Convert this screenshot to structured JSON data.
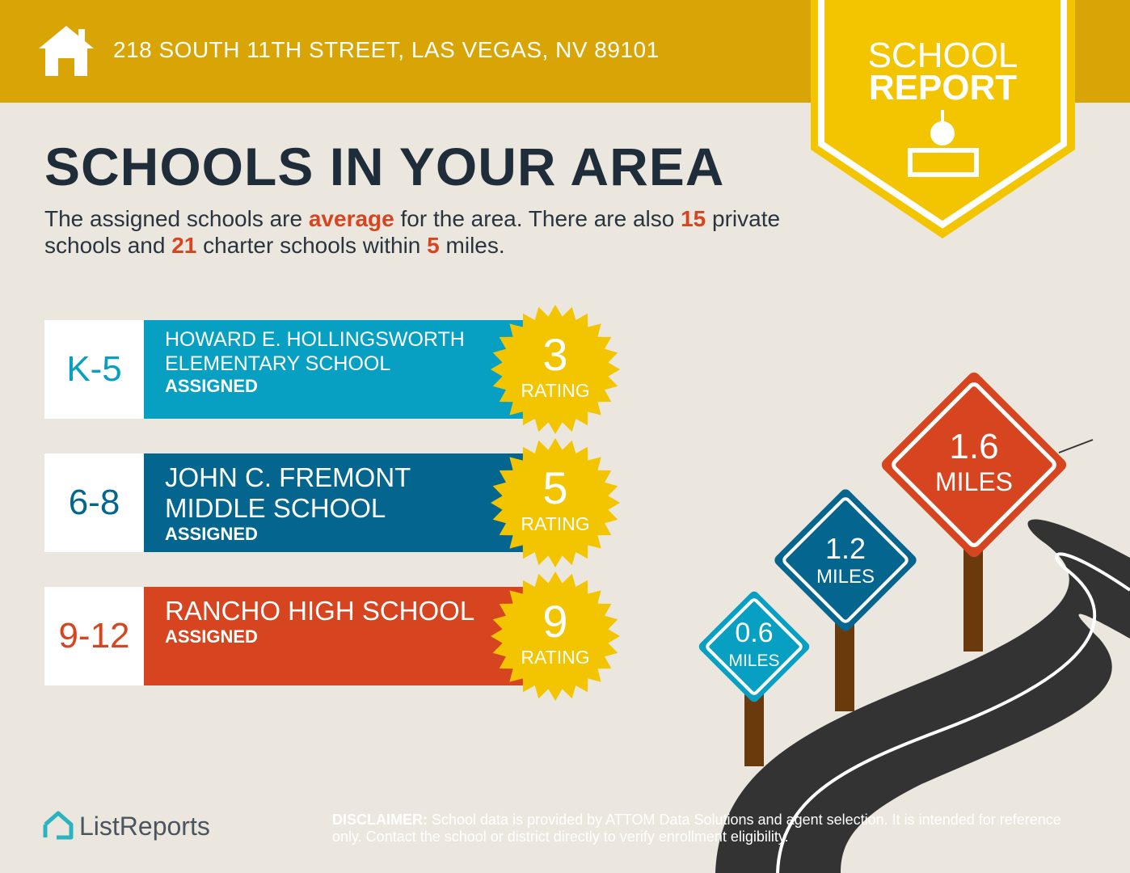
{
  "header": {
    "address": "218 SOUTH 11TH STREET, LAS VEGAS, NV 89101",
    "badge": [
      "SCHOOL",
      "REPORT"
    ]
  },
  "title": "SCHOOLS IN YOUR AREA",
  "summary": [
    "The assigned schools are ",
    "average",
    " for the area. There are also ",
    "15",
    " private schools and ",
    "21",
    " charter schools within ",
    "5",
    " miles."
  ],
  "schools": [
    {
      "grades": "K-5",
      "name_lines": [
        "HOWARD E. HOLLINGSWORTH",
        "ELEMENTARY SCHOOL"
      ],
      "status": "ASSIGNED",
      "rating": 3,
      "rating_label": "RATING"
    },
    {
      "grades": "6-8",
      "name_lines": [
        "JOHN C. FREMONT",
        "MIDDLE SCHOOL"
      ],
      "status": "ASSIGNED",
      "rating": 5,
      "rating_label": "RATING"
    },
    {
      "grades": "9-12",
      "name_lines": [
        "RANCHO HIGH SCHOOL"
      ],
      "status": "ASSIGNED",
      "rating": 9,
      "rating_label": "RATING"
    }
  ],
  "distances": [
    {
      "value": "0.6",
      "unit": "MILES"
    },
    {
      "value": "1.2",
      "unit": "MILES"
    },
    {
      "value": "1.6",
      "unit": "MILES"
    }
  ],
  "footer": {
    "logo": "ListReports",
    "disclaimer_label": "DISCLAIMER:",
    "disclaimer": " School data is provided by ATTOM Data Solutions and agent selection. It is intended for reference only. Contact the school or district directly to verify enrollment eligibility."
  }
}
